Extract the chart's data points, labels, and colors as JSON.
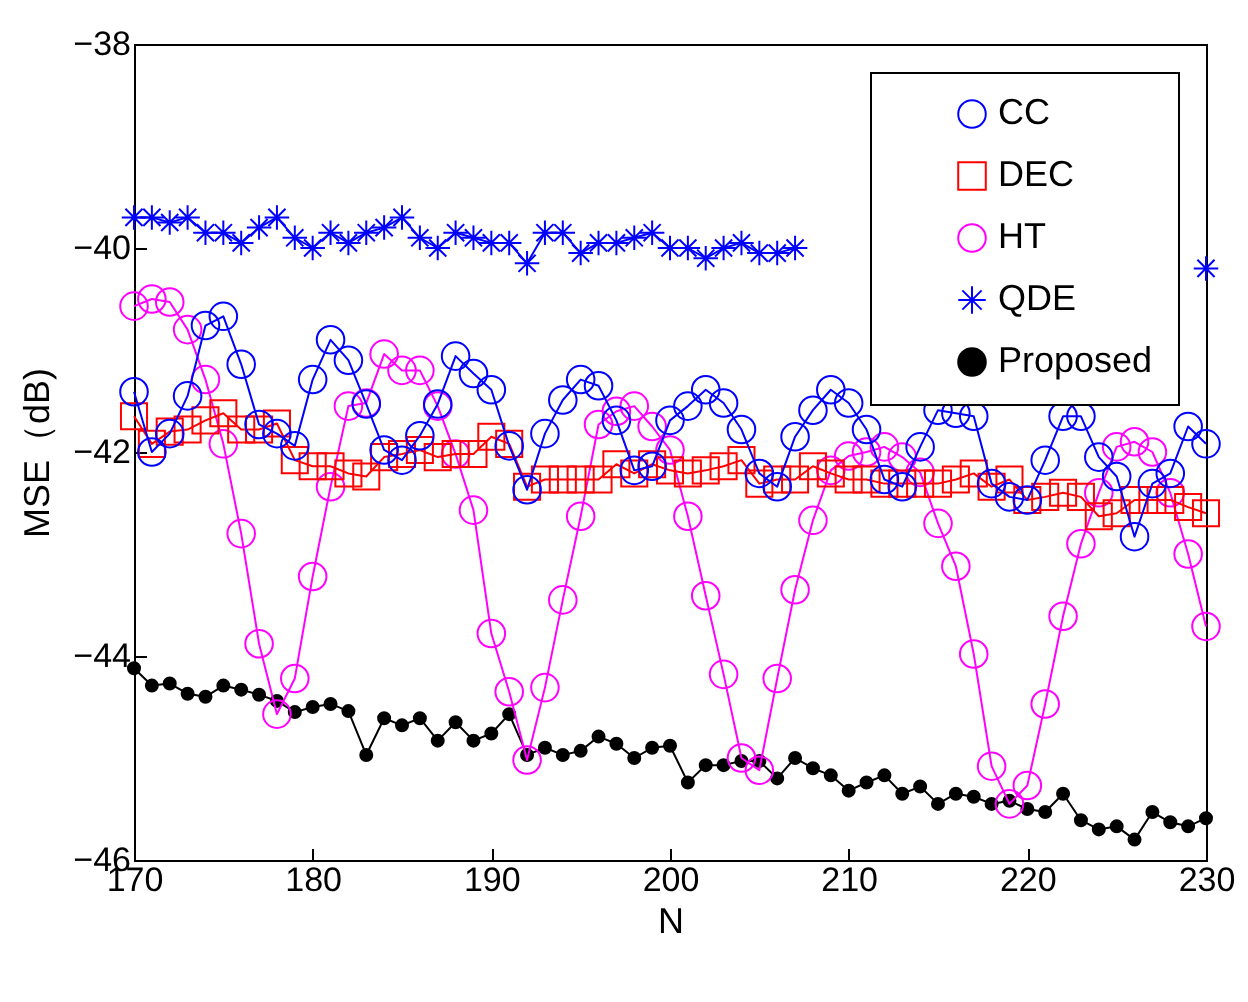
{
  "chart_data": {
    "type": "line",
    "xlabel": "N",
    "ylabel": "MSE（dB)",
    "x": [
      170,
      171,
      172,
      173,
      174,
      175,
      176,
      177,
      178,
      179,
      180,
      181,
      182,
      183,
      184,
      185,
      186,
      187,
      188,
      189,
      190,
      191,
      192,
      193,
      194,
      195,
      196,
      197,
      198,
      199,
      200,
      201,
      202,
      203,
      204,
      205,
      206,
      207,
      208,
      209,
      210,
      211,
      212,
      213,
      214,
      215,
      216,
      217,
      218,
      219,
      220,
      221,
      222,
      223,
      224,
      225,
      226,
      227,
      228,
      229,
      230
    ],
    "xlim": [
      170,
      230
    ],
    "xticks": [
      170,
      180,
      190,
      200,
      210,
      220,
      230
    ],
    "ylim": [
      -46,
      -38
    ],
    "yticks": [
      -46,
      -44,
      -42,
      -40,
      -38
    ],
    "grid": false,
    "legend": "top right",
    "series": [
      {
        "name": "CC",
        "color": "#0000ff",
        "marker": "circle",
        "values": [
          -41.41,
          -42.0,
          -41.82,
          -41.45,
          -40.76,
          -40.67,
          -41.14,
          -41.73,
          -41.82,
          -41.94,
          -41.29,
          -40.9,
          -41.1,
          -41.53,
          -41.98,
          -42.08,
          -41.84,
          -41.53,
          -41.06,
          -41.23,
          -41.39,
          -41.94,
          -42.37,
          -41.82,
          -41.49,
          -41.29,
          -41.35,
          -41.69,
          -42.18,
          -42.14,
          -41.69,
          -41.55,
          -41.39,
          -41.52,
          -41.78,
          -42.21,
          -42.34,
          -41.85,
          -41.59,
          -41.39,
          -41.52,
          -41.78,
          -42.27,
          -42.34,
          -41.95,
          -41.59,
          -41.62,
          -41.65,
          -42.31,
          -42.44,
          -42.47,
          -42.08,
          -41.65,
          -41.65,
          -42.05,
          -42.24,
          -42.83,
          -42.31,
          -42.21,
          -41.75,
          -41.92
        ]
      },
      {
        "name": "DEC",
        "color": "#ff0000",
        "marker": "square",
        "values": [
          -41.65,
          -41.92,
          -41.8,
          -41.78,
          -41.69,
          -41.62,
          -41.78,
          -41.78,
          -41.72,
          -42.08,
          -42.14,
          -42.14,
          -42.21,
          -42.24,
          -42.05,
          -42.02,
          -41.98,
          -42.05,
          -42.02,
          -42.02,
          -41.85,
          -41.92,
          -42.34,
          -42.27,
          -42.27,
          -42.27,
          -42.27,
          -42.12,
          -42.21,
          -42.12,
          -42.18,
          -42.21,
          -42.18,
          -42.14,
          -42.08,
          -42.31,
          -42.27,
          -42.27,
          -42.14,
          -42.21,
          -42.27,
          -42.27,
          -42.31,
          -42.31,
          -42.31,
          -42.31,
          -42.27,
          -42.21,
          -42.34,
          -42.27,
          -42.47,
          -42.44,
          -42.4,
          -42.44,
          -42.63,
          -42.6,
          -42.47,
          -42.47,
          -42.47,
          -42.54,
          -42.6
        ]
      },
      {
        "name": "HT",
        "color": "#ff00ff",
        "marker": "circle",
        "values": [
          -40.57,
          -40.5,
          -40.53,
          -40.8,
          -41.29,
          -41.92,
          -42.8,
          -43.88,
          -44.57,
          -44.22,
          -43.22,
          -42.34,
          -41.55,
          -41.52,
          -41.04,
          -41.2,
          -41.2,
          -41.55,
          -42.02,
          -42.57,
          -43.78,
          -44.35,
          -45.02,
          -44.31,
          -43.45,
          -42.63,
          -41.73,
          -41.6,
          -41.55,
          -41.75,
          -41.98,
          -42.63,
          -43.41,
          -44.18,
          -45.0,
          -45.12,
          -44.22,
          -43.35,
          -42.67,
          -42.18,
          -42.04,
          -42.0,
          -41.95,
          -42.05,
          -42.2,
          -42.7,
          -43.12,
          -43.98,
          -45.08,
          -45.45,
          -45.27,
          -44.47,
          -43.61,
          -42.9,
          -42.4,
          -41.95,
          -41.9,
          -42.0,
          -42.4,
          -43.0,
          -43.71
        ]
      },
      {
        "name": "QDE",
        "color": "#0000ff",
        "marker": "cross",
        "values": [
          -39.7,
          -39.7,
          -39.75,
          -39.7,
          -39.85,
          -39.85,
          -39.95,
          -39.8,
          -39.7,
          -39.9,
          -40.0,
          -39.85,
          -39.95,
          -39.85,
          -39.8,
          -39.7,
          -39.9,
          -40.0,
          -39.85,
          -39.9,
          -39.95,
          -39.95,
          -40.15,
          -39.85,
          -39.85,
          -40.05,
          -39.95,
          -39.95,
          -39.9,
          -39.85,
          -40.0,
          -40.0,
          -40.1,
          -40.0,
          -39.95,
          -40.05,
          -40.05,
          -40.0,
          null,
          null,
          null,
          null,
          null,
          null,
          null,
          null,
          null,
          null,
          null,
          null,
          null,
          null,
          null,
          null,
          null,
          null,
          null,
          null,
          null,
          null,
          -40.2
        ]
      },
      {
        "name": "Proposed",
        "color": "#000000",
        "marker": "circle",
        "values": [
          -44.12,
          -44.29,
          -44.27,
          -44.37,
          -44.4,
          -44.29,
          -44.33,
          -44.38,
          -44.44,
          -44.55,
          -44.5,
          -44.47,
          -44.54,
          -44.97,
          -44.61,
          -44.68,
          -44.61,
          -44.83,
          -44.65,
          -44.83,
          -44.76,
          -44.57,
          -44.97,
          -44.9,
          -44.97,
          -44.93,
          -44.79,
          -44.86,
          -45.0,
          -44.9,
          -44.88,
          -45.24,
          -45.07,
          -45.07,
          -45.03,
          -45.03,
          -45.2,
          -45.0,
          -45.1,
          -45.17,
          -45.32,
          -45.24,
          -45.17,
          -45.35,
          -45.28,
          -45.45,
          -45.35,
          -45.38,
          -45.45,
          -45.42,
          -45.5,
          -45.53,
          -45.35,
          -45.61,
          -45.7,
          -45.67,
          -45.8,
          -45.53,
          -45.63,
          -45.67,
          -45.59
        ]
      }
    ]
  }
}
